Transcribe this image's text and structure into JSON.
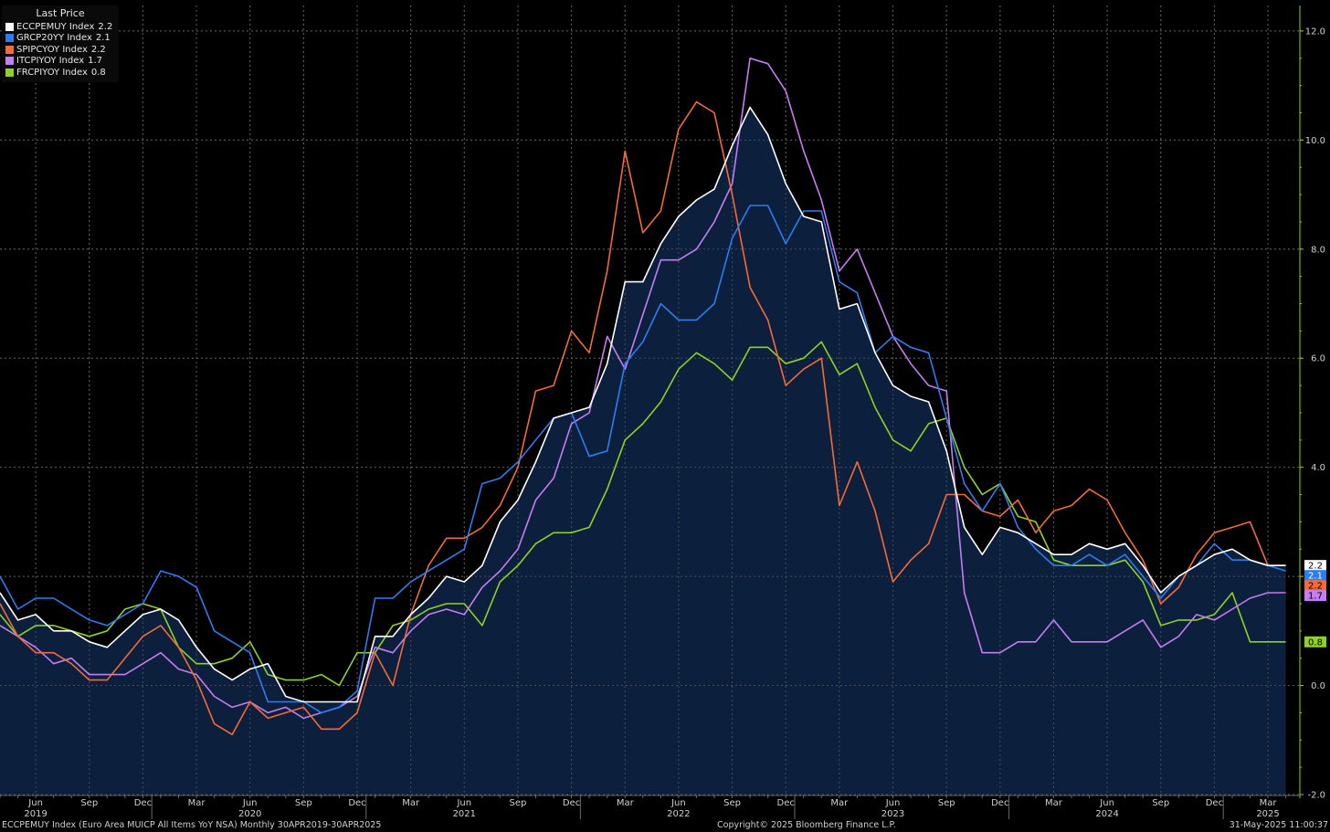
{
  "chart_data": {
    "type": "line",
    "legend_title": "Last Price",
    "legend_position": "top-left",
    "grid": true,
    "ylim": [
      -2.0,
      12.3
    ],
    "y_ticks": [
      "12.0",
      "10.0",
      "8.0",
      "6.0",
      "4.0",
      "2.0",
      "0.0",
      "-2.0"
    ],
    "x_range": [
      "2019-04",
      "2025-04"
    ],
    "x_month_labels": [
      {
        "label": "Jun",
        "date": "2019-06"
      },
      {
        "label": "Sep",
        "date": "2019-09"
      },
      {
        "label": "Dec",
        "date": "2019-12"
      },
      {
        "label": "Mar",
        "date": "2020-03"
      },
      {
        "label": "Jun",
        "date": "2020-06"
      },
      {
        "label": "Sep",
        "date": "2020-09"
      },
      {
        "label": "Dec",
        "date": "2020-12"
      },
      {
        "label": "Mar",
        "date": "2021-03"
      },
      {
        "label": "Jun",
        "date": "2021-06"
      },
      {
        "label": "Sep",
        "date": "2021-09"
      },
      {
        "label": "Dec",
        "date": "2021-12"
      },
      {
        "label": "Mar",
        "date": "2022-03"
      },
      {
        "label": "Jun",
        "date": "2022-06"
      },
      {
        "label": "Sep",
        "date": "2022-09"
      },
      {
        "label": "Dec",
        "date": "2022-12"
      },
      {
        "label": "Mar",
        "date": "2023-03"
      },
      {
        "label": "Jun",
        "date": "2023-06"
      },
      {
        "label": "Sep",
        "date": "2023-09"
      },
      {
        "label": "Dec",
        "date": "2023-12"
      },
      {
        "label": "Mar",
        "date": "2024-03"
      },
      {
        "label": "Jun",
        "date": "2024-06"
      },
      {
        "label": "Sep",
        "date": "2024-09"
      },
      {
        "label": "Dec",
        "date": "2024-12"
      },
      {
        "label": "Mar",
        "date": "2025-03"
      }
    ],
    "x_year_labels": [
      {
        "label": "2019",
        "date": "2019-06"
      },
      {
        "label": "2020",
        "date": "2020-06"
      },
      {
        "label": "2021",
        "date": "2021-06"
      },
      {
        "label": "2022",
        "date": "2022-06"
      },
      {
        "label": "2023",
        "date": "2023-06"
      },
      {
        "label": "2024",
        "date": "2024-06"
      },
      {
        "label": "2025",
        "date": "2025-03"
      }
    ],
    "fill_color": "#0c1f3c",
    "series": [
      {
        "name": "ECCPEMUY Index",
        "last": "2.2",
        "color": "#ffffff",
        "label_text_color": "#000000",
        "filled": true,
        "values": [
          1.7,
          1.2,
          1.3,
          1.0,
          1.0,
          0.8,
          0.7,
          1.0,
          1.3,
          1.4,
          1.2,
          0.7,
          0.3,
          0.1,
          0.3,
          0.4,
          -0.2,
          -0.3,
          -0.3,
          -0.3,
          -0.3,
          0.9,
          0.9,
          1.3,
          1.6,
          2.0,
          1.9,
          2.2,
          3.0,
          3.4,
          4.1,
          4.9,
          5.0,
          5.1,
          5.9,
          7.4,
          7.4,
          8.1,
          8.6,
          8.9,
          9.1,
          9.9,
          10.6,
          10.1,
          9.2,
          8.6,
          8.5,
          6.9,
          7.0,
          6.1,
          5.5,
          5.3,
          5.2,
          4.3,
          2.9,
          2.4,
          2.9,
          2.8,
          2.6,
          2.4,
          2.4,
          2.6,
          2.5,
          2.6,
          2.2,
          1.7,
          2.0,
          2.2,
          2.4,
          2.5,
          2.3,
          2.2,
          2.2
        ]
      },
      {
        "name": "GRCP20YY Index",
        "last": "2.1",
        "color": "#2e7cf2",
        "label_text_color": "#ffffff",
        "filled": false,
        "values": [
          2.0,
          1.4,
          1.6,
          1.6,
          1.4,
          1.2,
          1.1,
          1.3,
          1.5,
          2.1,
          2.0,
          1.8,
          1.0,
          0.8,
          0.6,
          -0.3,
          -0.3,
          -0.3,
          -0.5,
          -0.4,
          -0.1,
          1.6,
          1.6,
          1.9,
          2.1,
          2.3,
          2.5,
          3.7,
          3.8,
          4.1,
          4.5,
          4.9,
          5.0,
          4.2,
          4.3,
          5.9,
          6.3,
          7.0,
          6.7,
          6.7,
          7.0,
          8.2,
          8.8,
          8.8,
          8.1,
          8.7,
          8.7,
          7.4,
          7.2,
          6.1,
          6.4,
          6.2,
          6.1,
          4.9,
          3.7,
          3.2,
          3.7,
          2.9,
          2.5,
          2.2,
          2.2,
          2.4,
          2.2,
          2.4,
          2.0,
          1.6,
          2.0,
          2.2,
          2.6,
          2.3,
          2.3,
          2.2,
          2.1
        ]
      },
      {
        "name": "SPIPCYOY Index",
        "last": "2.2",
        "color": "#f26b38",
        "label_text_color": "#000000",
        "filled": false,
        "values": [
          1.5,
          0.9,
          0.6,
          0.6,
          0.4,
          0.1,
          0.1,
          0.5,
          0.9,
          1.1,
          0.7,
          0.1,
          -0.7,
          -0.9,
          -0.3,
          -0.6,
          -0.5,
          -0.4,
          -0.8,
          -0.8,
          -0.5,
          0.6,
          0.0,
          1.3,
          2.2,
          2.7,
          2.7,
          2.9,
          3.3,
          4.0,
          5.4,
          5.5,
          6.5,
          6.1,
          7.6,
          9.8,
          8.3,
          8.7,
          10.2,
          10.7,
          10.5,
          9.0,
          7.3,
          6.7,
          5.5,
          5.8,
          6.0,
          3.3,
          4.1,
          3.2,
          1.9,
          2.3,
          2.6,
          3.5,
          3.5,
          3.2,
          3.1,
          3.4,
          2.8,
          3.2,
          3.3,
          3.6,
          3.4,
          2.8,
          2.3,
          1.5,
          1.8,
          2.4,
          2.8,
          2.9,
          3.0,
          2.2,
          2.2
        ]
      },
      {
        "name": "ITCPIYOY Index",
        "last": "1.7",
        "color": "#c47df2",
        "label_text_color": "#000000",
        "filled": false,
        "values": [
          1.1,
          0.9,
          0.7,
          0.4,
          0.5,
          0.2,
          0.2,
          0.2,
          0.4,
          0.6,
          0.3,
          0.2,
          -0.2,
          -0.4,
          -0.3,
          -0.5,
          -0.4,
          -0.6,
          -0.5,
          -0.4,
          -0.2,
          0.7,
          0.6,
          1.0,
          1.3,
          1.4,
          1.3,
          1.8,
          2.1,
          2.5,
          3.4,
          3.8,
          4.8,
          5.0,
          6.4,
          5.8,
          6.8,
          7.8,
          7.8,
          8.0,
          8.5,
          9.2,
          11.5,
          11.4,
          10.9,
          9.8,
          8.9,
          7.6,
          8.0,
          7.2,
          6.4,
          5.9,
          5.5,
          5.4,
          1.7,
          0.6,
          0.6,
          0.8,
          0.8,
          1.2,
          0.8,
          0.8,
          0.8,
          1.0,
          1.2,
          0.7,
          0.9,
          1.3,
          1.2,
          1.4,
          1.6,
          1.7,
          1.7
        ]
      },
      {
        "name": "FRCPIYOY Index",
        "last": "0.8",
        "color": "#8fd125",
        "label_text_color": "#000000",
        "filled": false,
        "values": [
          1.3,
          0.9,
          1.1,
          1.1,
          1.0,
          0.9,
          1.0,
          1.4,
          1.5,
          1.4,
          0.7,
          0.4,
          0.4,
          0.5,
          0.8,
          0.2,
          0.1,
          0.1,
          0.2,
          0.0,
          0.6,
          0.6,
          1.1,
          1.2,
          1.4,
          1.5,
          1.5,
          1.1,
          1.9,
          2.2,
          2.6,
          2.8,
          2.8,
          2.9,
          3.6,
          4.5,
          4.8,
          5.2,
          5.8,
          6.1,
          5.9,
          5.6,
          6.2,
          6.2,
          5.9,
          6.0,
          6.3,
          5.7,
          5.9,
          5.1,
          4.5,
          4.3,
          4.8,
          4.9,
          4.0,
          3.5,
          3.7,
          3.1,
          3.0,
          2.3,
          2.2,
          2.2,
          2.2,
          2.3,
          1.9,
          1.1,
          1.2,
          1.2,
          1.3,
          1.7,
          0.8,
          0.8,
          0.8
        ]
      }
    ]
  },
  "footer": {
    "left": "ECCPEMUY Index (Euro Area MUICP All Items YoY NSA)  Monthly 30APR2019-30APR2025",
    "center": "Copyright© 2025 Bloomberg Finance L.P.",
    "right": "31-May-2025 11:00:37"
  }
}
